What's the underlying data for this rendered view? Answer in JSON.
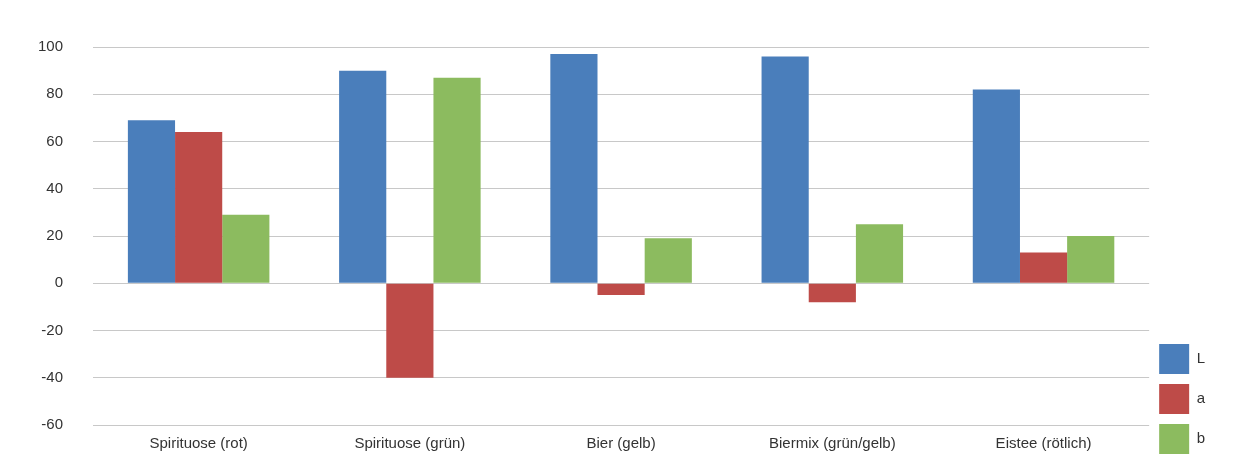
{
  "chart_data": {
    "type": "bar",
    "categories": [
      "Spirituose (rot)",
      "Spirituose (grün)",
      "Bier (gelb)",
      "Biermix (grün/gelb)",
      "Eistee (rötlich)"
    ],
    "series": [
      {
        "name": "L",
        "color": "#4a7ebb",
        "values": [
          69,
          90,
          97,
          96,
          82
        ]
      },
      {
        "name": "a",
        "color": "#be4b48",
        "values": [
          64,
          -40,
          -5,
          -8,
          13
        ]
      },
      {
        "name": "b",
        "color": "#8cbb5f",
        "values": [
          29,
          87,
          19,
          25,
          20
        ]
      }
    ],
    "ylim": [
      -60,
      100
    ],
    "yticks": [
      -60,
      -40,
      -20,
      0,
      20,
      40,
      60,
      80,
      100
    ],
    "grid": "y",
    "legend": "bottom right"
  }
}
